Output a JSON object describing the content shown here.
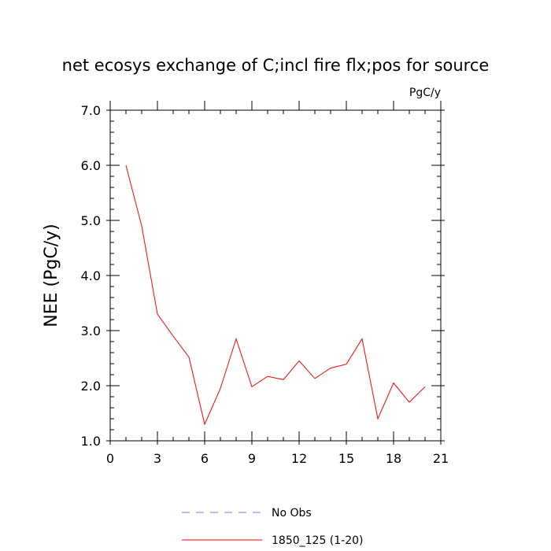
{
  "chart_data": {
    "type": "line",
    "title": "net ecosys exchange of C;incl fire flx;pos for source",
    "units_label": "PgC/y",
    "xlabel": "",
    "ylabel": "NEE  (PgC/y)",
    "xlim": [
      0,
      21
    ],
    "ylim": [
      1.0,
      7.0
    ],
    "x_ticks": [
      0,
      3,
      6,
      9,
      12,
      15,
      18,
      21
    ],
    "y_ticks": [
      "1.0",
      "2.0",
      "3.0",
      "4.0",
      "5.0",
      "6.0",
      "7.0"
    ],
    "grid": false,
    "legend_position": "bottom",
    "series": [
      {
        "name": "No Obs",
        "color": "#7777ee",
        "style": "dashed",
        "x": [],
        "values": []
      },
      {
        "name": "1850_125 (1-20)",
        "color": "#ff0000",
        "style": "solid",
        "x": [
          1,
          2,
          3,
          4,
          5,
          6,
          7,
          8,
          9,
          10,
          11,
          12,
          13,
          14,
          15,
          16,
          17,
          18,
          19,
          20
        ],
        "values": [
          6.0,
          4.9,
          3.3,
          2.9,
          2.52,
          1.3,
          1.95,
          2.85,
          1.98,
          2.17,
          2.11,
          2.45,
          2.13,
          2.32,
          2.39,
          2.85,
          1.4,
          2.05,
          1.7,
          1.98
        ]
      }
    ]
  }
}
